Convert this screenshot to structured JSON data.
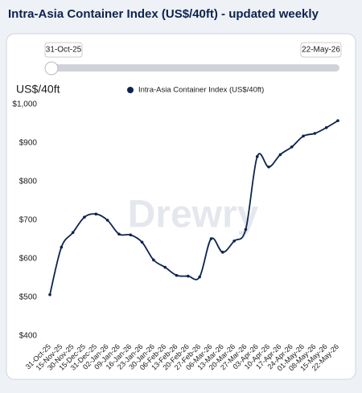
{
  "title": "Intra-Asia Container Index (US$/40ft) - updated weekly",
  "chart_data": {
    "type": "line",
    "y_axis_label": "US$/40ft",
    "watermark": "Drewry",
    "categories": [
      "31-Oct-25",
      "15-Nov-25",
      "30-Nov-25",
      "15-Dec-25",
      "31-Dec-25",
      "02-Jan-26",
      "09-Jan-26",
      "16-Jan-26",
      "23-Jan-26",
      "30-Jan-26",
      "06-Feb-26",
      "13-Feb-26",
      "20-Feb-26",
      "27-Feb-26",
      "06-Mar-26",
      "13-Mar-26",
      "20-Mar-26",
      "27-Mar-26",
      "03-Apr-26",
      "10-Apr-26",
      "17-Apr-26",
      "24-Apr-26",
      "01-May-26",
      "08-May-26",
      "15-May-26",
      "22-May-26"
    ],
    "series": [
      {
        "name": "Intra-Asia Container Index (US$/40ft)",
        "color": "#0d2350",
        "values": [
          507,
          630,
          668,
          708,
          716,
          700,
          664,
          662,
          643,
          597,
          578,
          557,
          555,
          553,
          652,
          617,
          646,
          676,
          865,
          838,
          870,
          890,
          918,
          925,
          940,
          958
        ]
      }
    ],
    "ylim": [
      400,
      1000
    ],
    "yticks": [
      {
        "value": 400,
        "label": "$400"
      },
      {
        "value": 500,
        "label": "$500"
      },
      {
        "value": 600,
        "label": "$600"
      },
      {
        "value": 700,
        "label": "$700"
      },
      {
        "value": 800,
        "label": "$800"
      },
      {
        "value": 900,
        "label": "$900"
      },
      {
        "value": 1000,
        "label": "$1,000"
      }
    ],
    "grid": false
  }
}
